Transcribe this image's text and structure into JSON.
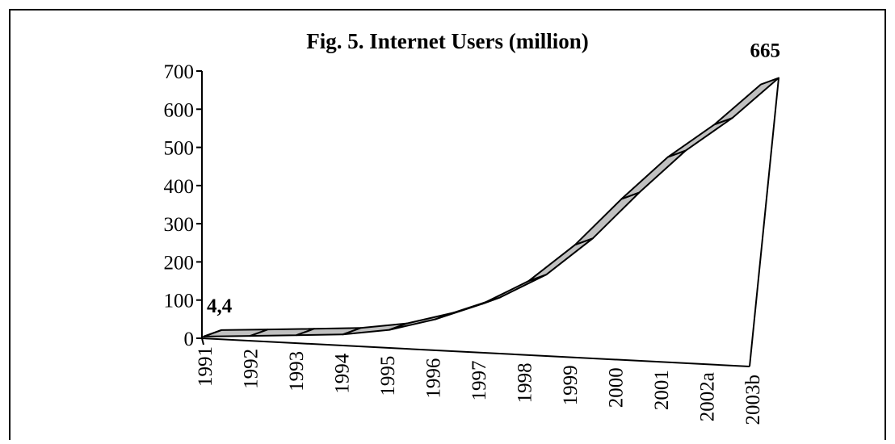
{
  "chart_data": {
    "type": "area",
    "title": "Fig. 5. Internet Users (million)",
    "categories": [
      "1991",
      "1992",
      "1993",
      "1994",
      "1995",
      "1996",
      "1997",
      "1998",
      "1999",
      "2000",
      "2001",
      "2002a",
      "2003b"
    ],
    "series": [
      {
        "values": [
          4.4,
          6,
          8,
          10,
          22,
          50,
          90,
          150,
          245,
          365,
          475,
          560,
          665
        ]
      }
    ],
    "y_ticks": [
      "0",
      "100",
      "200",
      "300",
      "400",
      "500",
      "600",
      "700"
    ],
    "ylim": [
      0,
      700
    ],
    "data_labels": [
      {
        "index": 0,
        "text": "4,4"
      },
      {
        "index": 12,
        "text": "665"
      }
    ],
    "style": "3d-ribbon",
    "colors": {
      "ribbon_fill": "#c0c0c0",
      "line": "#000000",
      "background": "#ffffff"
    }
  }
}
